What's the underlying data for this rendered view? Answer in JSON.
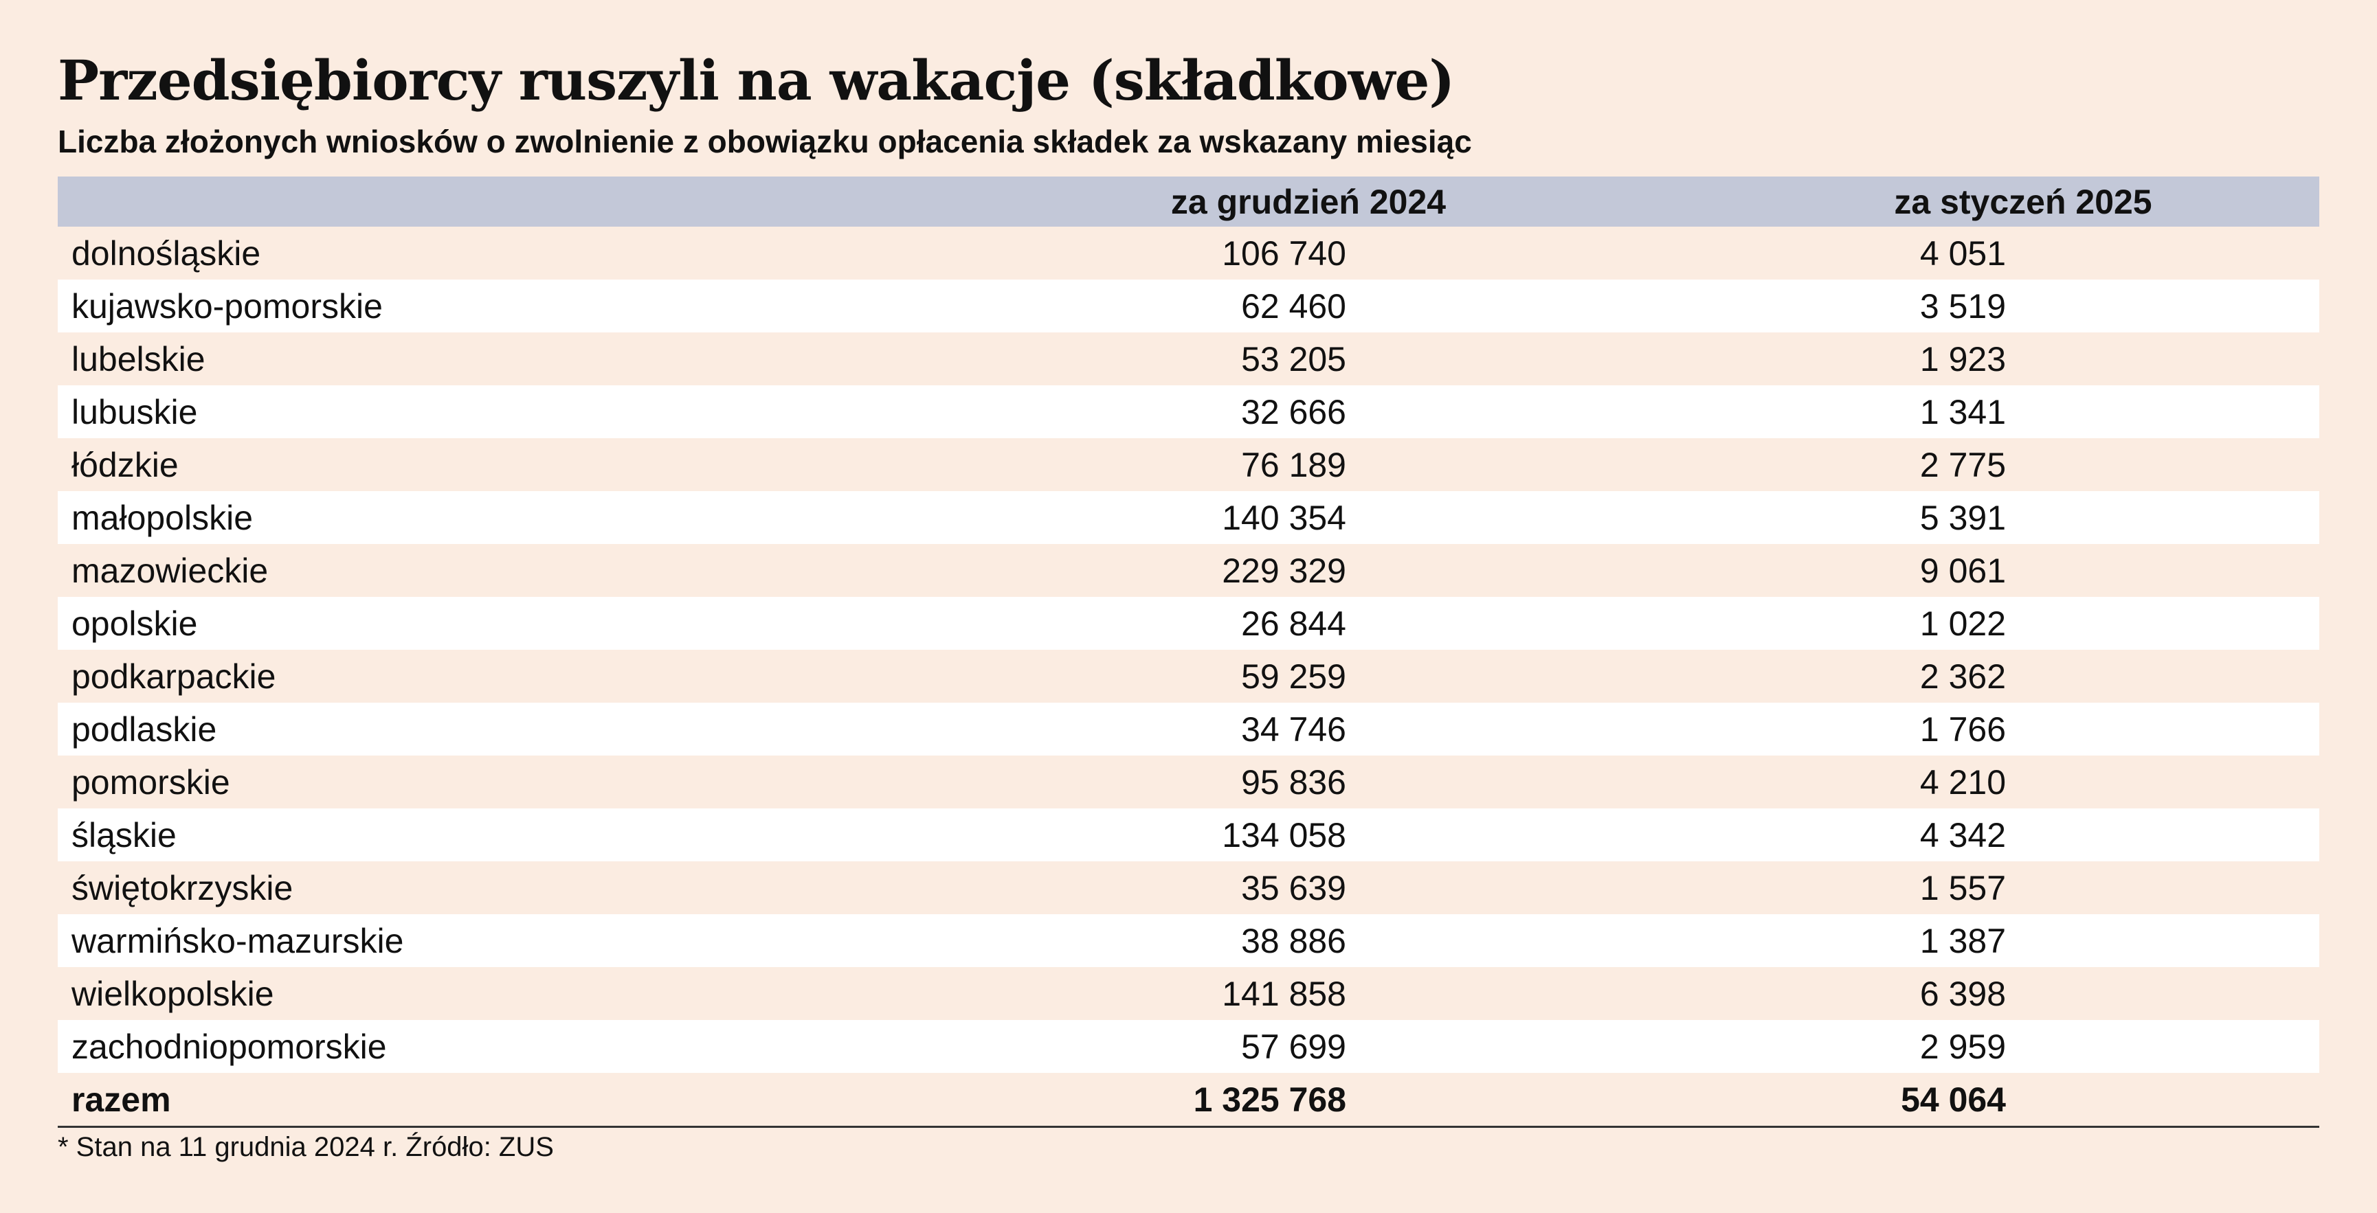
{
  "chart_data": {
    "type": "table",
    "title": "Przedsiębiorcy ruszyli na wakacje (składkowe)",
    "subtitle": "Liczba złożonych wniosków o zwolnienie z obowiązku opłacenia składek za wskazany miesiąc",
    "columns": [
      "",
      "za grudzień 2024",
      "za styczeń 2025"
    ],
    "rows": [
      {
        "region": "dolnośląskie",
        "dec2024": "106 740",
        "jan2025": "4 051"
      },
      {
        "region": "kujawsko-pomorskie",
        "dec2024": "62 460",
        "jan2025": "3 519"
      },
      {
        "region": "lubelskie",
        "dec2024": "53 205",
        "jan2025": "1 923"
      },
      {
        "region": "lubuskie",
        "dec2024": "32 666",
        "jan2025": "1 341"
      },
      {
        "region": "łódzkie",
        "dec2024": "76 189",
        "jan2025": "2 775"
      },
      {
        "region": "małopolskie",
        "dec2024": "140 354",
        "jan2025": "5 391"
      },
      {
        "region": "mazowieckie",
        "dec2024": "229 329",
        "jan2025": "9 061"
      },
      {
        "region": "opolskie",
        "dec2024": "26 844",
        "jan2025": "1 022"
      },
      {
        "region": "podkarpackie",
        "dec2024": "59 259",
        "jan2025": "2 362"
      },
      {
        "region": "podlaskie",
        "dec2024": "34 746",
        "jan2025": "1 766"
      },
      {
        "region": "pomorskie",
        "dec2024": "95 836",
        "jan2025": "4 210"
      },
      {
        "region": "śląskie",
        "dec2024": "134 058",
        "jan2025": "4 342"
      },
      {
        "region": "świętokrzyskie",
        "dec2024": "35 639",
        "jan2025": "1 557"
      },
      {
        "region": "warmińsko-mazurskie",
        "dec2024": "38 886",
        "jan2025": "1 387"
      },
      {
        "region": "wielkopolskie",
        "dec2024": "141 858",
        "jan2025": "6 398"
      },
      {
        "region": "zachodniopomorskie",
        "dec2024": "57 699",
        "jan2025": "2 959"
      }
    ],
    "total": {
      "region": "razem",
      "dec2024": "1 325 768",
      "jan2025": "54 064"
    },
    "footnote": "* Stan na 11 grudnia 2024 r. Źródło: ZUS"
  },
  "colors": {
    "background": "#fbece1",
    "header_band": "#c3c8d8",
    "alternate_row": "#ffffff",
    "text": "#111111",
    "rule": "#333333"
  }
}
